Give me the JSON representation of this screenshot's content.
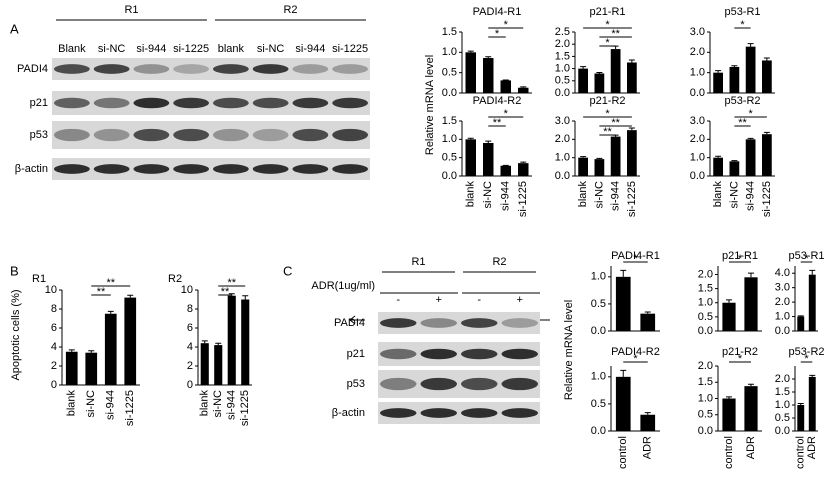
{
  "chart_data": [
    {
      "type": "bar",
      "title": "PADI4-R1",
      "categories": [
        null,
        null,
        null,
        null
      ],
      "values": [
        1.0,
        0.86,
        0.31,
        0.13
      ],
      "errors": [
        0.03,
        0.03,
        0.01,
        0.02
      ],
      "color": "#000000",
      "ylim": [
        0,
        1.5
      ],
      "yticks": [
        {
          "value": 0,
          "label": "0.0"
        },
        {
          "value": 0.5,
          "label": "0.5"
        },
        {
          "value": 1,
          "label": "1.0"
        },
        {
          "value": 1.5,
          "label": "1.5"
        }
      ],
      "annotations": [
        "*",
        "*"
      ]
    },
    {
      "type": "bar",
      "title": "p21-R1",
      "categories": [
        null,
        null,
        null,
        null
      ],
      "values": [
        1.0,
        0.8,
        1.8,
        1.25
      ],
      "errors": [
        0.08,
        0.04,
        0.12,
        0.1
      ],
      "color": "#000000",
      "ylim": [
        0,
        2.5
      ],
      "yticks": [
        {
          "value": 0,
          "label": "0.0"
        },
        {
          "value": 0.5,
          "label": "0.5"
        },
        {
          "value": 1,
          "label": "1.0"
        },
        {
          "value": 1.5,
          "label": "1.5"
        },
        {
          "value": 2,
          "label": "2.0"
        },
        {
          "value": 2.5,
          "label": "2.5"
        }
      ],
      "annotations": [
        "*",
        "**",
        "*"
      ]
    },
    {
      "type": "bar",
      "title": "p53-R1",
      "categories": [
        null,
        null,
        null,
        null
      ],
      "values": [
        1.0,
        1.28,
        2.28,
        1.6
      ],
      "errors": [
        0.1,
        0.06,
        0.15,
        0.12
      ],
      "color": "#000000",
      "ylim": [
        0,
        3
      ],
      "yticks": [
        {
          "value": 0,
          "label": "0.0"
        },
        {
          "value": 1,
          "label": "1.0"
        },
        {
          "value": 2,
          "label": "2.0"
        },
        {
          "value": 3,
          "label": "3.0"
        }
      ],
      "annotations": [
        "*"
      ]
    },
    {
      "type": "bar",
      "title": "PADI4-R2",
      "categories": [
        "blank",
        "si-NC",
        "si-944",
        "si-1225"
      ],
      "values": [
        1.0,
        0.9,
        0.28,
        0.35
      ],
      "errors": [
        0.03,
        0.05,
        0.01,
        0.03
      ],
      "color": "#000000",
      "ylim": [
        0,
        1.5
      ],
      "yticks": [
        {
          "value": 0,
          "label": "0.0"
        },
        {
          "value": 0.5,
          "label": "0.5"
        },
        {
          "value": 1,
          "label": "1.0"
        },
        {
          "value": 1.5,
          "label": "1.5"
        }
      ],
      "annotations": [
        "*",
        "**"
      ]
    },
    {
      "type": "bar",
      "title": "p21-R2",
      "categories": [
        "blank",
        "si-NC",
        "si-944",
        "si-1225"
      ],
      "values": [
        1.0,
        0.92,
        2.15,
        2.5
      ],
      "errors": [
        0.06,
        0.04,
        0.08,
        0.12
      ],
      "color": "#000000",
      "ylim": [
        0,
        3
      ],
      "yticks": [
        {
          "value": 0,
          "label": "0.0"
        },
        {
          "value": 1,
          "label": "1.0"
        },
        {
          "value": 2,
          "label": "2.0"
        },
        {
          "value": 3,
          "label": "3.0"
        }
      ],
      "annotations": [
        "*",
        "**",
        "**"
      ]
    },
    {
      "type": "bar",
      "title": "p53-R2",
      "categories": [
        "blank",
        "si-NC",
        "si-944",
        "si-1225"
      ],
      "values": [
        1.0,
        0.8,
        2.0,
        2.28
      ],
      "errors": [
        0.08,
        0.04,
        0.05,
        0.1
      ],
      "color": "#000000",
      "ylim": [
        0,
        3
      ],
      "yticks": [
        {
          "value": 0,
          "label": "0.0"
        },
        {
          "value": 1,
          "label": "1.0"
        },
        {
          "value": 2,
          "label": "2.0"
        },
        {
          "value": 3,
          "label": "3.0"
        }
      ],
      "annotations": [
        "*",
        "**"
      ]
    },
    {
      "type": "bar",
      "title": "R1",
      "categories": [
        "blank",
        "si-NC",
        "si-944",
        "si-1225"
      ],
      "values": [
        3.5,
        3.4,
        7.5,
        9.2
      ],
      "errors": [
        0.2,
        0.2,
        0.25,
        0.25
      ],
      "color": "#000000",
      "ylim": [
        0,
        10
      ],
      "yticks": [
        0,
        2,
        4,
        6,
        8,
        10
      ],
      "annotations": [
        "**",
        "**"
      ]
    },
    {
      "type": "bar",
      "title": "R2",
      "categories": [
        "blank",
        "si-NC",
        "si-944",
        "si-1225"
      ],
      "values": [
        4.4,
        4.2,
        9.4,
        9.0
      ],
      "errors": [
        0.25,
        0.2,
        0.2,
        0.4
      ],
      "color": "#000000",
      "ylim": [
        0,
        10
      ],
      "yticks": [
        0,
        2,
        4,
        6,
        8,
        10
      ],
      "annotations": [
        "**",
        "**"
      ]
    },
    {
      "type": "bar",
      "title": "PADI4-R1",
      "categories": [
        null,
        null
      ],
      "values": [
        1.0,
        0.32
      ],
      "errors": [
        0.12,
        0.03
      ],
      "color": "#000000",
      "ylim": [
        0,
        1.2
      ],
      "yticks": [
        {
          "value": 0,
          "label": "0.0"
        },
        {
          "value": 0.5,
          "label": "0.5"
        },
        {
          "value": 1,
          "label": "1.0"
        }
      ],
      "annotations": [
        "*"
      ]
    },
    {
      "type": "bar",
      "title": "p21-R1",
      "categories": [
        null,
        null
      ],
      "values": [
        1.0,
        1.9
      ],
      "errors": [
        0.1,
        0.15
      ],
      "color": "#000000",
      "ylim": [
        0,
        2.3
      ],
      "yticks": [
        {
          "value": 0,
          "label": "0.0"
        },
        {
          "value": 0.5,
          "label": "0.5"
        },
        {
          "value": 1,
          "label": "1.0"
        },
        {
          "value": 1.5,
          "label": "1.5"
        },
        {
          "value": 2,
          "label": "2.0"
        }
      ],
      "annotations": [
        "*"
      ]
    },
    {
      "type": "bar",
      "title": "p53-R1",
      "categories": [
        null,
        null
      ],
      "values": [
        1.0,
        3.9
      ],
      "errors": [
        0.05,
        0.3
      ],
      "color": "#000000",
      "ylim": [
        0,
        4.5
      ],
      "yticks": [
        {
          "value": 0,
          "label": "0.0"
        },
        {
          "value": 1,
          "label": "1.0"
        },
        {
          "value": 2,
          "label": "2.0"
        },
        {
          "value": 3,
          "label": "3.0"
        },
        {
          "value": 4,
          "label": "4.0"
        }
      ],
      "annotations": [
        "*"
      ]
    },
    {
      "type": "bar",
      "title": "PADI4-R2",
      "categories": [
        "control",
        "ADR"
      ],
      "values": [
        1.0,
        0.3
      ],
      "errors": [
        0.12,
        0.04
      ],
      "color": "#000000",
      "ylim": [
        0,
        1.2
      ],
      "yticks": [
        {
          "value": 0,
          "label": "0.0"
        },
        {
          "value": 0.5,
          "label": "0.5"
        },
        {
          "value": 1,
          "label": "1.0"
        }
      ],
      "annotations": [
        "*"
      ]
    },
    {
      "type": "bar",
      "title": "p21-R2",
      "categories": [
        "control",
        "ADR"
      ],
      "values": [
        1.0,
        1.38
      ],
      "errors": [
        0.05,
        0.06
      ],
      "color": "#000000",
      "ylim": [
        0,
        2
      ],
      "yticks": [
        {
          "value": 0,
          "label": "0.0"
        },
        {
          "value": 0.5,
          "label": "0.5"
        },
        {
          "value": 1,
          "label": "1.0"
        },
        {
          "value": 1.5,
          "label": "1.5"
        },
        {
          "value": 2,
          "label": "2.0"
        }
      ],
      "annotations": [
        "*"
      ]
    },
    {
      "type": "bar",
      "title": "p53-R2",
      "categories": [
        "control",
        "ADR"
      ],
      "values": [
        1.0,
        2.08
      ],
      "errors": [
        0.06,
        0.06
      ],
      "color": "#000000",
      "ylim": [
        0,
        2.5
      ],
      "yticks": [
        {
          "value": 0,
          "label": "0.0"
        },
        {
          "value": 0.5,
          "label": "0.5"
        },
        {
          "value": 1,
          "label": "1.0"
        },
        {
          "value": 1.5,
          "label": "1.5"
        },
        {
          "value": 2,
          "label": "2.0"
        }
      ],
      "annotations": [
        "*"
      ]
    }
  ],
  "figure": {
    "panel_a": {
      "label": "A",
      "groups": [
        "R1",
        "R2"
      ],
      "lanes": [
        "Blank",
        "si-NC",
        "si-944",
        "si-1225",
        "blank",
        "si-NC",
        "si-944",
        "si-1225"
      ],
      "rows": [
        "PADI4",
        "p21",
        "p53",
        "β-actin"
      ],
      "ylabel": "Relative mRNA level"
    },
    "panel_b": {
      "label": "B",
      "ylabel": "Apoptotic cells (%)"
    },
    "panel_c": {
      "label": "C",
      "groups": [
        "R1",
        "R2"
      ],
      "treatment": "ADR(1ug/ml)",
      "lanes": [
        "-",
        "+",
        "-",
        "+"
      ],
      "rows": [
        "PADI4",
        "p21",
        "p53",
        "β-actin"
      ],
      "ylabel": "Relative mRNA level"
    }
  }
}
